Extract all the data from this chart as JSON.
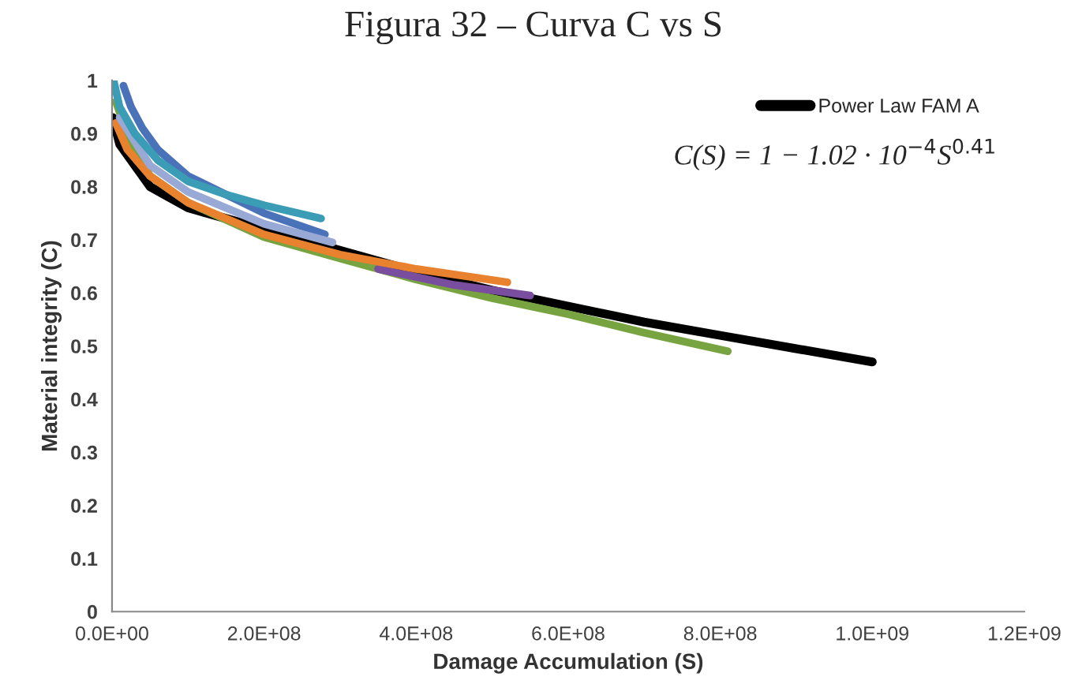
{
  "chart_data": {
    "type": "line",
    "title": "Figura 32 – Curva C vs S",
    "xlabel": "Damage Accumulation (S)",
    "ylabel": "Material integrity (C)",
    "annotations": [
      "C(S) = 1 − 1.02 · 10$^{−4}$S$^{0.41}$"
    ],
    "xlim": [
      0,
      1200000000
    ],
    "ylim": [
      0,
      1
    ],
    "xticks": [
      {
        "value": 0,
        "label": "0.0E+00"
      },
      {
        "value": 200000000,
        "label": "2.0E+08"
      },
      {
        "value": 400000000,
        "label": "4.0E+08"
      },
      {
        "value": 600000000,
        "label": "6.0E+08"
      },
      {
        "value": 800000000,
        "label": "8.0E+08"
      },
      {
        "value": 1000000000,
        "label": "1.0E+09"
      },
      {
        "value": 1200000000,
        "label": "1.2E+09"
      }
    ],
    "yticks": [
      0,
      0.1,
      0.2,
      0.3,
      0.4,
      0.5,
      0.6,
      0.7,
      0.8,
      0.9,
      1
    ],
    "grid": false,
    "legend": "top right",
    "series": [
      {
        "name": "Power Law FAM A",
        "color": "#000000",
        "x": [
          1000000,
          10000000,
          50000000,
          100000000,
          400000000,
          500000000,
          600000000,
          700000000,
          800000000,
          900000000,
          1000000000
        ],
        "values": [
          0.93,
          0.88,
          0.8,
          0.76,
          0.64,
          0.605,
          0.575,
          0.545,
          0.52,
          0.495,
          0.47
        ]
      },
      {
        "color": "#77a340",
        "x": [
          5000000,
          20000000,
          50000000,
          100000000,
          200000000,
          300000000,
          400000000,
          500000000,
          600000000,
          700000000,
          810000000
        ],
        "values": [
          0.96,
          0.9,
          0.82,
          0.77,
          0.705,
          0.665,
          0.625,
          0.59,
          0.56,
          0.525,
          0.49
        ]
      },
      {
        "color": "#7a4e9e",
        "x": [
          350000000,
          450000000,
          550000000
        ],
        "values": [
          0.645,
          0.615,
          0.595
        ]
      },
      {
        "color": "#e8822e",
        "x": [
          5000000,
          20000000,
          50000000,
          100000000,
          200000000,
          300000000,
          400000000,
          520000000
        ],
        "values": [
          0.92,
          0.87,
          0.82,
          0.77,
          0.71,
          0.672,
          0.645,
          0.62
        ]
      },
      {
        "color": "#4a72b8",
        "x": [
          15000000,
          25000000,
          40000000,
          60000000,
          100000000,
          200000000,
          280000000
        ],
        "values": [
          0.99,
          0.95,
          0.91,
          0.87,
          0.82,
          0.75,
          0.71
        ]
      },
      {
        "color": "#98a9d6",
        "x": [
          10000000,
          50000000,
          100000000,
          200000000,
          290000000
        ],
        "values": [
          0.93,
          0.84,
          0.79,
          0.73,
          0.695
        ]
      },
      {
        "color": "#3a9db5",
        "x": [
          2000000,
          10000000,
          30000000,
          60000000,
          100000000,
          150000000,
          200000000,
          275000000
        ],
        "values": [
          1.0,
          0.95,
          0.9,
          0.85,
          0.81,
          0.785,
          0.765,
          0.74
        ]
      }
    ]
  }
}
